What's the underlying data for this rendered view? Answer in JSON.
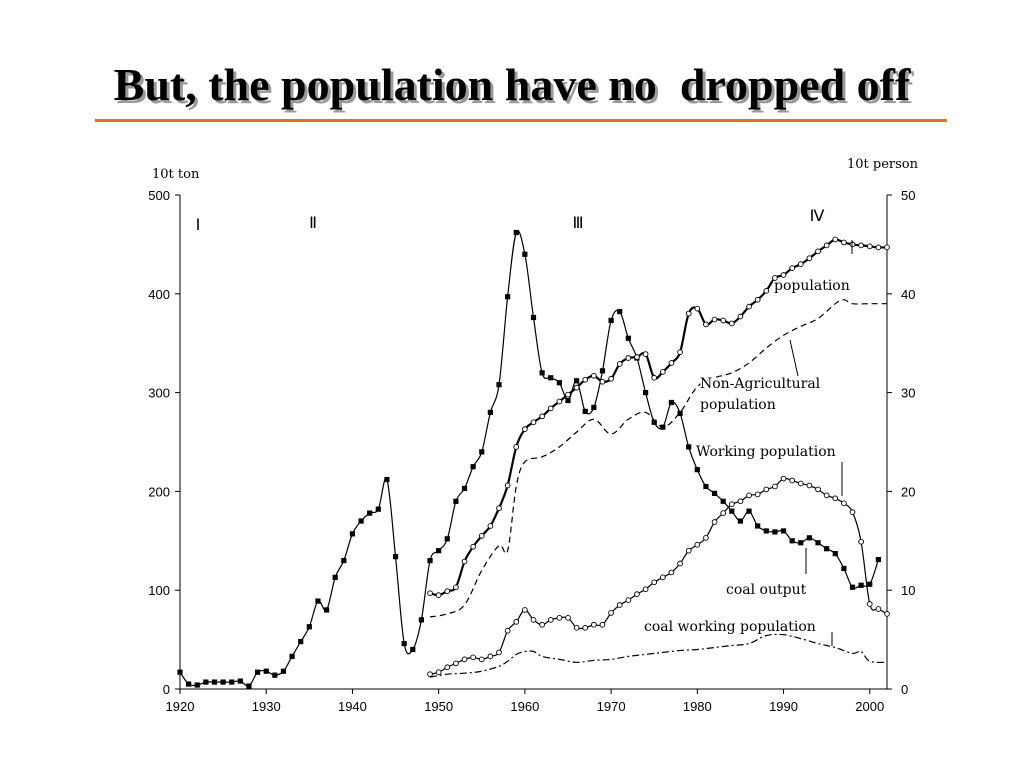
{
  "slide": {
    "title": "But, the population have no  dropped off",
    "accent": "#f07010"
  },
  "chart_data": {
    "type": "line",
    "title": "But, the population have no  dropped off",
    "xlim": [
      1920,
      2002
    ],
    "x_ticks": [
      "1920",
      "1930",
      "1940",
      "1950",
      "1960",
      "1970",
      "1980",
      "1990",
      "2000"
    ],
    "y_left": {
      "unit": "10t ton",
      "ylim": [
        0,
        500
      ],
      "ticks": [
        "0",
        "100",
        "200",
        "300",
        "400",
        "500"
      ]
    },
    "y_right": {
      "unit": "10t person",
      "ylim": [
        0,
        50
      ],
      "ticks": [
        "0",
        "10",
        "20",
        "30",
        "40",
        "50"
      ]
    },
    "periods": [
      "Ⅰ",
      "Ⅱ",
      "Ⅲ",
      "Ⅳ"
    ],
    "grid": false,
    "series": [
      {
        "name": "coal output",
        "axis": "left",
        "marker": "filled-square",
        "dash": "solid",
        "x": [
          1920,
          1921,
          1922,
          1923,
          1924,
          1925,
          1926,
          1927,
          1928,
          1929,
          1930,
          1931,
          1932,
          1933,
          1934,
          1935,
          1936,
          1937,
          1938,
          1939,
          1940,
          1941,
          1942,
          1943,
          1944,
          1945,
          1946,
          1947,
          1948,
          1949,
          1950,
          1951,
          1952,
          1953,
          1954,
          1955,
          1956,
          1957,
          1958,
          1959,
          1960,
          1961,
          1962,
          1963,
          1964,
          1965,
          1966,
          1967,
          1968,
          1969,
          1970,
          1971,
          1972,
          1973,
          1974,
          1975,
          1976,
          1977,
          1978,
          1979,
          1980,
          1981,
          1982,
          1983,
          1984,
          1985,
          1986,
          1987,
          1988,
          1989,
          1990,
          1991,
          1992,
          1993,
          1994,
          1995,
          1996,
          1997,
          1998,
          1999,
          2000,
          2001
        ],
        "values": [
          17,
          5,
          4,
          7,
          7,
          7,
          7,
          8,
          3,
          17,
          18,
          14,
          18,
          33,
          48,
          63,
          89,
          80,
          113,
          130,
          157,
          170,
          178,
          182,
          212,
          134,
          46,
          40,
          70,
          130,
          140,
          152,
          190,
          203,
          225,
          240,
          280,
          308,
          397,
          462,
          440,
          376,
          320,
          315,
          310,
          292,
          312,
          281,
          285,
          322,
          373,
          382,
          355,
          335,
          300,
          270,
          265,
          290,
          279,
          245,
          222,
          205,
          198,
          190,
          180,
          170,
          180,
          165,
          160,
          159,
          160,
          150,
          148,
          153,
          148,
          142,
          137,
          122,
          103,
          105,
          106,
          131
        ],
        "label": "coal output"
      },
      {
        "name": "population",
        "axis": "right",
        "marker": "open-circle",
        "dash": "solid",
        "x": [
          1949,
          1950,
          1951,
          1952,
          1953,
          1954,
          1955,
          1956,
          1957,
          1958,
          1959,
          1960,
          1961,
          1962,
          1963,
          1964,
          1965,
          1966,
          1967,
          1968,
          1969,
          1970,
          1971,
          1972,
          1973,
          1974,
          1975,
          1976,
          1977,
          1978,
          1979,
          1980,
          1981,
          1982,
          1983,
          1984,
          1985,
          1986,
          1987,
          1988,
          1989,
          1990,
          1991,
          1992,
          1993,
          1994,
          1995,
          1996,
          1997,
          1998,
          1999,
          2000,
          2001,
          2002
        ],
        "values": [
          9.7,
          9.5,
          9.9,
          10.3,
          12.9,
          14.4,
          15.5,
          16.5,
          18.3,
          20.6,
          24.5,
          26.3,
          27.0,
          27.6,
          28.4,
          29.1,
          29.8,
          30.5,
          31.3,
          31.7,
          31.1,
          31.4,
          32.9,
          33.5,
          33.6,
          33.9,
          31.5,
          32.1,
          33.0,
          34.1,
          38.0,
          38.5,
          36.9,
          37.4,
          37.3,
          37.0,
          37.7,
          38.7,
          39.4,
          40.3,
          41.6,
          41.9,
          42.6,
          43.0,
          43.6,
          44.3,
          44.9,
          45.5,
          45.2,
          45.0,
          44.9,
          44.8,
          44.7,
          44.7
        ],
        "label": "population"
      },
      {
        "name": "Non-Agricultural population",
        "axis": "right",
        "marker": "none",
        "dash": "dashed",
        "x": [
          1949,
          1951,
          1953,
          1955,
          1957,
          1958,
          1959,
          1960,
          1962,
          1964,
          1966,
          1968,
          1970,
          1972,
          1974,
          1976,
          1978,
          1980,
          1982,
          1984,
          1986,
          1988,
          1990,
          1992,
          1994,
          1996,
          1997,
          1998,
          2000,
          2002
        ],
        "values": [
          7.3,
          7.6,
          8.5,
          12.0,
          14.5,
          14.0,
          20.5,
          23.0,
          23.5,
          24.5,
          26.0,
          27.3,
          25.8,
          27.3,
          28.0,
          26.5,
          28.0,
          30.6,
          31.5,
          32.0,
          33.0,
          34.5,
          35.8,
          36.7,
          37.5,
          39.0,
          39.4,
          39.0,
          39.0,
          39.0
        ],
        "label": "Non-Agricultural population"
      },
      {
        "name": "Working population",
        "axis": "right",
        "marker": "open-circle",
        "dash": "solid",
        "x": [
          1949,
          1950,
          1951,
          1952,
          1953,
          1954,
          1955,
          1956,
          1957,
          1958,
          1959,
          1960,
          1961,
          1962,
          1963,
          1964,
          1965,
          1966,
          1967,
          1968,
          1969,
          1970,
          1971,
          1972,
          1973,
          1974,
          1975,
          1976,
          1977,
          1978,
          1979,
          1980,
          1981,
          1982,
          1983,
          1984,
          1985,
          1986,
          1987,
          1988,
          1989,
          1990,
          1991,
          1992,
          1993,
          1994,
          1995,
          1996,
          1997,
          1998,
          1999,
          2000,
          2001,
          2002
        ],
        "values": [
          1.5,
          1.7,
          2.2,
          2.6,
          3.0,
          3.2,
          3.0,
          3.3,
          3.7,
          5.9,
          6.8,
          8.0,
          7.0,
          6.5,
          7.0,
          7.2,
          7.2,
          6.2,
          6.2,
          6.5,
          6.5,
          7.7,
          8.5,
          9.0,
          9.6,
          10.1,
          10.8,
          11.3,
          11.8,
          12.7,
          14.0,
          14.6,
          15.3,
          16.9,
          17.8,
          18.7,
          19.0,
          19.6,
          19.7,
          20.2,
          20.5,
          21.3,
          21.1,
          20.8,
          20.6,
          20.2,
          19.6,
          19.3,
          18.8,
          17.9,
          14.9,
          8.6,
          8.1,
          7.6
        ],
        "label": "Working population"
      },
      {
        "name": "coal working population",
        "axis": "right",
        "marker": "none",
        "dash": "dash-dot",
        "x": [
          1949,
          1951,
          1953,
          1955,
          1957,
          1958,
          1959,
          1960,
          1961,
          1962,
          1964,
          1966,
          1968,
          1970,
          1972,
          1974,
          1976,
          1978,
          1980,
          1982,
          1984,
          1986,
          1988,
          1990,
          1992,
          1994,
          1996,
          1998,
          1999,
          2000,
          2002
        ],
        "values": [
          1.2,
          1.5,
          1.6,
          1.8,
          2.3,
          2.8,
          3.5,
          3.8,
          3.8,
          3.3,
          3.0,
          2.7,
          2.9,
          3.0,
          3.3,
          3.5,
          3.7,
          3.9,
          4.0,
          4.2,
          4.4,
          4.6,
          5.4,
          5.5,
          5.1,
          4.6,
          4.2,
          3.6,
          3.8,
          2.8,
          2.7
        ],
        "label": "coal working population"
      }
    ]
  }
}
